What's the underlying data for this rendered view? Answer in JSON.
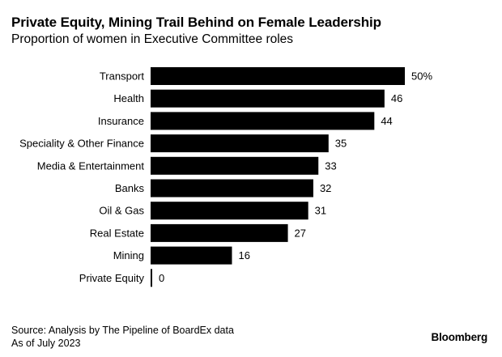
{
  "chart_data": {
    "type": "bar",
    "orientation": "horizontal",
    "title": "Private Equity, Mining Trail Behind on Female Leadership",
    "subtitle": "Proportion of women in Executive Committee roles",
    "categories": [
      "Transport",
      "Health",
      "Insurance",
      "Speciality & Other Finance",
      "Media & Entertainment",
      "Banks",
      "Oil & Gas",
      "Real Estate",
      "Mining",
      "Private Equity"
    ],
    "values": [
      50,
      46,
      44,
      35,
      33,
      32,
      31,
      27,
      16,
      0
    ],
    "value_labels": [
      "50%",
      "46",
      "44",
      "35",
      "33",
      "32",
      "31",
      "27",
      "16",
      "0"
    ],
    "unit": "%",
    "xlim": [
      0,
      50
    ],
    "bar_color": "#000000",
    "grid": false,
    "legend": false
  },
  "footer": {
    "source": "Source: Analysis by The Pipeline of BoardEx data",
    "date_note": "As of July 2023",
    "brand": "Bloomberg"
  }
}
